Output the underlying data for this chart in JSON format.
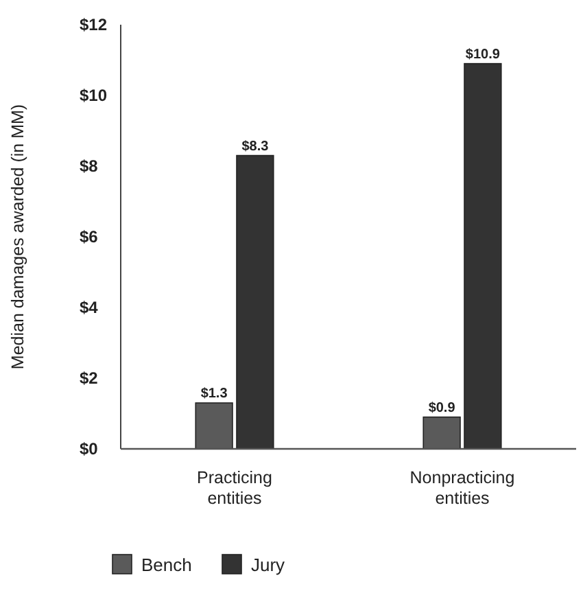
{
  "chart_data": {
    "type": "bar",
    "ylabel": "Median damages awarded (in MM)",
    "categories": [
      "Practicing entities",
      "Nonpracticing entities"
    ],
    "series": [
      {
        "name": "Bench",
        "color": "#5a5a5a",
        "values": [
          1.3,
          0.9
        ]
      },
      {
        "name": "Jury",
        "color": "#333333",
        "values": [
          8.3,
          10.9
        ]
      }
    ],
    "ylim": [
      0,
      12
    ],
    "yticks": [
      {
        "value": 0,
        "label": "$0"
      },
      {
        "value": 2,
        "label": "$2"
      },
      {
        "value": 4,
        "label": "$4"
      },
      {
        "value": 6,
        "label": "$6"
      },
      {
        "value": 8,
        "label": "$8"
      },
      {
        "value": 10,
        "label": "$10"
      },
      {
        "value": 12,
        "label": "$12"
      }
    ],
    "value_labels": [
      [
        "$1.3",
        "$0.9"
      ],
      [
        "$8.3",
        "$10.9"
      ]
    ],
    "legend": "bottom left",
    "grid": false
  }
}
